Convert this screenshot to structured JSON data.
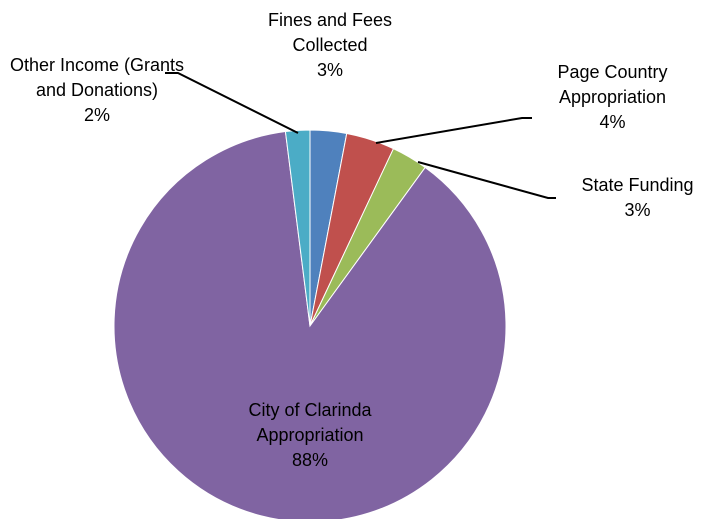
{
  "chart_data": {
    "type": "pie",
    "categories": [
      "Fines and Fees Collected",
      "Page Country Appropriation",
      "State Funding",
      "City of Clarinda Appropriation",
      "Other Income (Grants and Donations)"
    ],
    "values": [
      3,
      4,
      3,
      88,
      2
    ],
    "value_labels": [
      "3%",
      "4%",
      "3%",
      "88%",
      "2%"
    ],
    "colors": [
      "#4f81bd",
      "#c0504d",
      "#9bbb59",
      "#8064a2",
      "#4bacc6"
    ]
  }
}
